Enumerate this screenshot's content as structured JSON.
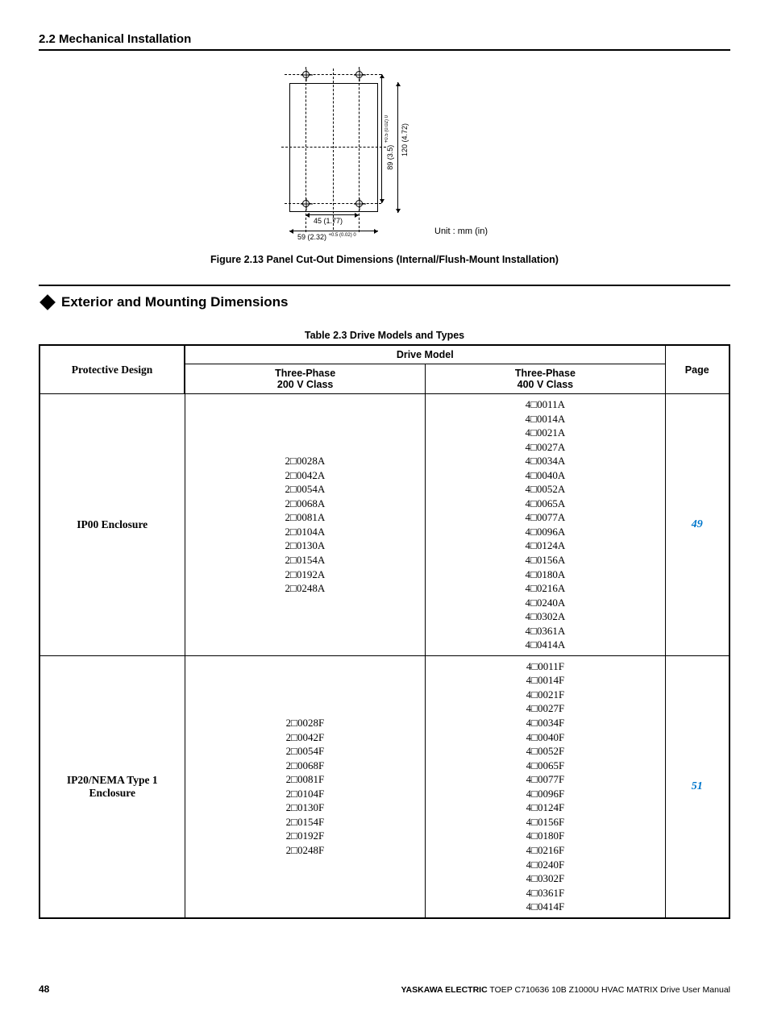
{
  "section_header": "2.2  Mechanical Installation",
  "diagram": {
    "dim_45": "45 (1.77)",
    "dim_59": "59 (2.32)",
    "dim_59_tol": "+0.5 (0.02) 0",
    "dim_89": "89 (3.5)",
    "dim_89_tol": "+0.5 (0.02) 0",
    "dim_120": "120 (4.72)",
    "unit": "Unit : mm (in)"
  },
  "figure_caption": "Figure 2.13  Panel Cut-Out Dimensions (Internal/Flush-Mount Installation)",
  "subsection_title": "Exterior and Mounting Dimensions",
  "table_caption": "Table 2.3  Drive Models and Types",
  "headers": {
    "pd": "Protective Design",
    "dm": "Drive Model",
    "tp200": "Three-Phase\n200 V Class",
    "tp400": "Three-Phase\n400 V Class",
    "page": "Page"
  },
  "rows": [
    {
      "pd": "IP00 Enclosure",
      "c200": [
        "2□0028A",
        "2□0042A",
        "2□0054A",
        "2□0068A",
        "2□0081A",
        "2□0104A",
        "2□0130A",
        "2□0154A",
        "2□0192A",
        "2□0248A"
      ],
      "c400": [
        "4□0011A",
        "4□0014A",
        "4□0021A",
        "4□0027A",
        "4□0034A",
        "4□0040A",
        "4□0052A",
        "4□0065A",
        "4□0077A",
        "4□0096A",
        "4□0124A",
        "4□0156A",
        "4□0180A",
        "4□0216A",
        "4□0240A",
        "4□0302A",
        "4□0361A",
        "4□0414A"
      ],
      "page": "49"
    },
    {
      "pd": "IP20/NEMA Type 1 Enclosure",
      "c200": [
        "2□0028F",
        "2□0042F",
        "2□0054F",
        "2□0068F",
        "2□0081F",
        "2□0104F",
        "2□0130F",
        "2□0154F",
        "2□0192F",
        "2□0248F"
      ],
      "c400": [
        "4□0011F",
        "4□0014F",
        "4□0021F",
        "4□0027F",
        "4□0034F",
        "4□0040F",
        "4□0052F",
        "4□0065F",
        "4□0077F",
        "4□0096F",
        "4□0124F",
        "4□0156F",
        "4□0180F",
        "4□0216F",
        "4□0240F",
        "4□0302F",
        "4□0361F",
        "4□0414F"
      ],
      "page": "51"
    }
  ],
  "footer": {
    "page": "48",
    "brand": "YASKAWA ELECTRIC",
    "doc": "TOEP C710636 10B Z1000U HVAC MATRIX Drive User Manual"
  }
}
